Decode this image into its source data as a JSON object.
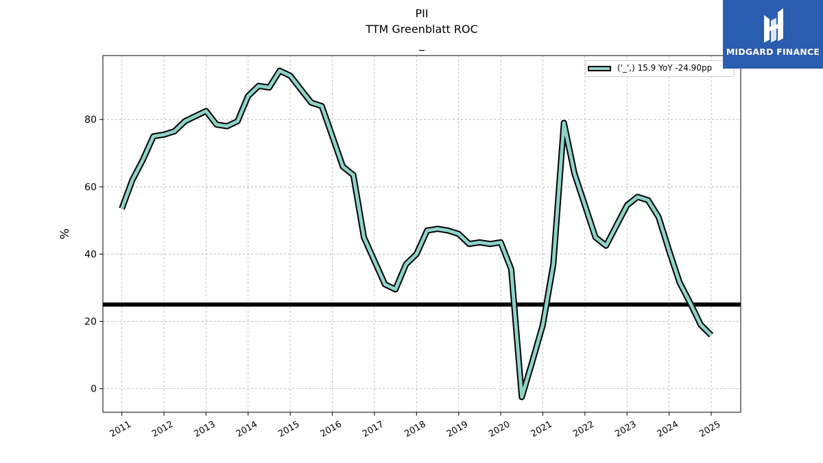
{
  "chart_data": {
    "type": "line",
    "title": "PII",
    "subtitle": "TTM Greenblatt ROC",
    "subtitle2": "_",
    "xlabel": "",
    "ylabel": "%",
    "xlim": [
      2010.55,
      2025.7
    ],
    "ylim": [
      -7,
      99
    ],
    "x_ticks": [
      2011,
      2012,
      2013,
      2014,
      2015,
      2016,
      2017,
      2018,
      2019,
      2020,
      2021,
      2022,
      2023,
      2024,
      2025
    ],
    "x_tick_labels": [
      "2011",
      "2012",
      "2013",
      "2014",
      "2015",
      "2016",
      "2017",
      "2018",
      "2019",
      "2020",
      "2021",
      "2022",
      "2023",
      "2024",
      "2025"
    ],
    "y_ticks": [
      0,
      20,
      40,
      60,
      80
    ],
    "y_tick_labels": [
      "0",
      "20",
      "40",
      "60",
      "80"
    ],
    "grid": true,
    "legend_position": "top-right",
    "series": [
      {
        "name": "('_',) 15.9 YoY -24.90pp",
        "color": "#8dd3c7",
        "outline_color": "#000000",
        "x": [
          2011.0,
          2011.25,
          2011.5,
          2011.75,
          2012.0,
          2012.25,
          2012.5,
          2012.75,
          2013.0,
          2013.25,
          2013.5,
          2013.75,
          2014.0,
          2014.25,
          2014.5,
          2014.75,
          2015.0,
          2015.25,
          2015.5,
          2015.75,
          2016.0,
          2016.25,
          2016.5,
          2016.75,
          2017.0,
          2017.25,
          2017.5,
          2017.75,
          2018.0,
          2018.25,
          2018.5,
          2018.75,
          2019.0,
          2019.25,
          2019.5,
          2019.75,
          2020.0,
          2020.25,
          2020.5,
          2020.75,
          2021.0,
          2021.25,
          2021.5,
          2021.75,
          2022.0,
          2022.25,
          2022.5,
          2022.75,
          2023.0,
          2023.25,
          2023.5,
          2023.75,
          2024.0,
          2024.25,
          2024.5,
          2024.75,
          2025.0
        ],
        "values": [
          53.5,
          62,
          68,
          75,
          75.5,
          76.5,
          79.5,
          81,
          82.5,
          78.5,
          78,
          79.5,
          87,
          90,
          89.5,
          94.5,
          93,
          89,
          85,
          84,
          75,
          66,
          63.5,
          45,
          38,
          31,
          29.5,
          37,
          40,
          47,
          47.5,
          47,
          46,
          43,
          43.5,
          43,
          43.5,
          35.5,
          -2.5,
          8,
          19,
          37,
          79,
          64,
          54.5,
          45,
          42.5,
          48.5,
          54.5,
          57,
          56,
          51,
          41,
          31.5,
          25.5,
          19,
          15.9
        ]
      }
    ],
    "reference_lines": [
      {
        "axis": "y",
        "value": 25,
        "color": "#000000"
      }
    ]
  },
  "logo": {
    "brand_name": "MIDGARD FINANCE",
    "color": "#2a5cb0"
  }
}
